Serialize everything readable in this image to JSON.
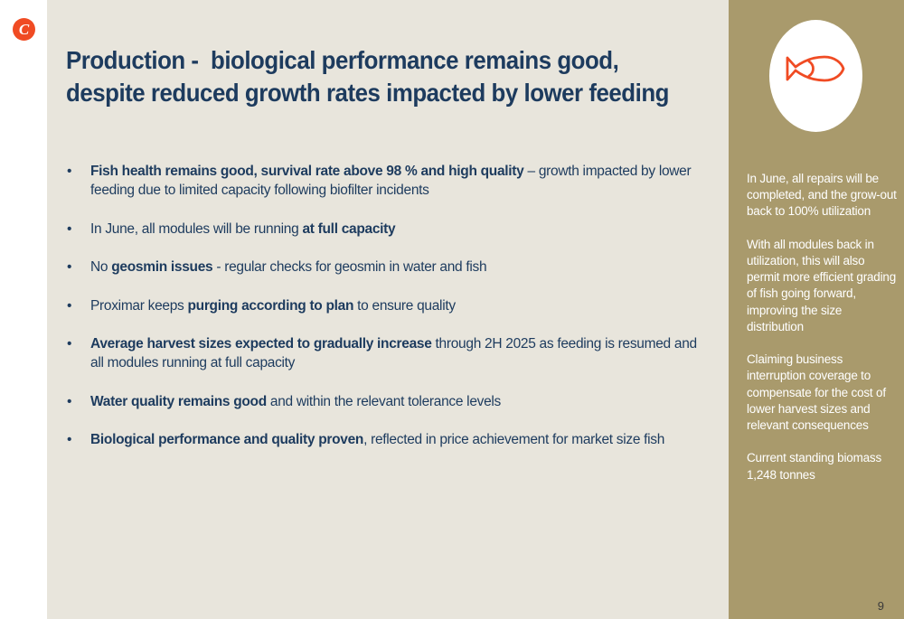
{
  "brand": {
    "logo_glyph": "C",
    "accent_color": "#f04b23"
  },
  "title": "Production -  biological performance remains good, despite reduced growth rates impacted by lower feeding",
  "bullets": [
    {
      "bold": "Fish health remains good, survival rate above 98 % and high quality",
      "after": " – growth impacted by lower feeding due to limited capacity following biofilter incidents"
    },
    {
      "before": "In June, all modules will be running ",
      "bold": "at full capacity"
    },
    {
      "before": "No ",
      "bold": "geosmin issues",
      "after": " - regular checks for geosmin in water and fish"
    },
    {
      "before": "Proximar keeps ",
      "bold": "purging according to plan",
      "after": " to ensure quality"
    },
    {
      "bold": "Average harvest sizes expected to gradually increase",
      "after": " through 2H 2025 as feeding is resumed and all modules running at full capacity"
    },
    {
      "bold": "Water quality remains good",
      "after": " and within the relevant tolerance levels"
    },
    {
      "bold": "Biological performance and quality proven",
      "after": ", reflected in price achievement for market size fish"
    }
  ],
  "sidebar": {
    "icon": "fish-icon",
    "paragraphs": [
      "In June, all repairs will be completed, and the grow-out back to 100% utilization",
      "With all modules back in utilization, this will also permit more efficient grading of fish going forward, improving the size distribution",
      "Claiming business interruption coverage to compensate for the cost of lower harvest sizes and relevant consequences",
      "Current standing biomass 1,248 tonnes"
    ]
  },
  "page_number": "9"
}
